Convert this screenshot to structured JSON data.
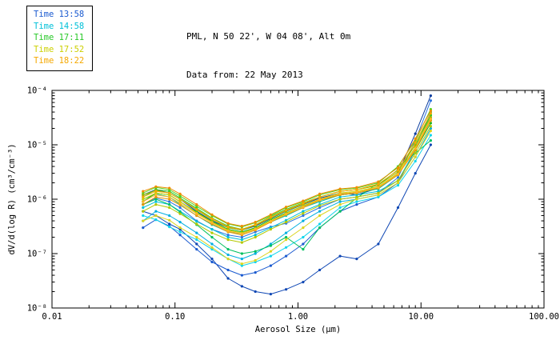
{
  "header": {
    "line1": "PML, N 50 22', W 04 08', Alt 0m",
    "line2": "Data from: 22 May 2013"
  },
  "legend": {
    "items": [
      {
        "label": "Time 13:58",
        "color": "#1a5ad0"
      },
      {
        "label": "Time 14:58",
        "color": "#00c0d8"
      },
      {
        "label": "Time 17:11",
        "color": "#28c828"
      },
      {
        "label": "Time 17:52",
        "color": "#ccd000"
      },
      {
        "label": "Time 18:22",
        "color": "#f5a800"
      }
    ]
  },
  "chart_data": {
    "type": "line",
    "title": "PML, N 50 22', W 04 08', Alt 0m — Data from: 22 May 2013",
    "xlabel": "Aerosol Size (μm)",
    "ylabel": "dV/d(log R) (cm³/cm⁻³)",
    "xscale": "log",
    "yscale": "log",
    "xlim": [
      0.01,
      100
    ],
    "ylim": [
      1e-08,
      0.0001
    ],
    "x_tick_labels": [
      "0.01",
      "0.10",
      "1.00",
      "10.00",
      "100.00"
    ],
    "x_tick_values": [
      0.01,
      0.1,
      1,
      10,
      100
    ],
    "y_tick_labels": [
      "10⁻⁸",
      "10⁻⁷",
      "10⁻⁶",
      "10⁻⁵",
      "10⁻⁴"
    ],
    "y_tick_values": [
      1e-08,
      1e-07,
      1e-06,
      1e-05,
      0.0001
    ],
    "grid": false,
    "legend_position": "top-left",
    "x": [
      0.055,
      0.07,
      0.09,
      0.11,
      0.15,
      0.2,
      0.27,
      0.35,
      0.45,
      0.6,
      0.8,
      1.1,
      1.5,
      2.2,
      3.0,
      4.5,
      6.5,
      9.0,
      12.0
    ],
    "series": [
      {
        "name": "Time 13:58 a",
        "group": "13:58",
        "color": "#0f47b4",
        "values": [
          6e-07,
          5e-07,
          3.5e-07,
          2.8e-07,
          1.5e-07,
          8e-08,
          3.5e-08,
          2.5e-08,
          2e-08,
          1.8e-08,
          2.2e-08,
          3e-08,
          5e-08,
          9e-08,
          8e-08,
          1.5e-07,
          7e-07,
          3e-06,
          1e-05
        ]
      },
      {
        "name": "Time 13:58 b",
        "group": "13:58",
        "color": "#1a5ad0",
        "values": [
          3e-07,
          4.2e-07,
          3.2e-07,
          2.2e-07,
          1.2e-07,
          7e-08,
          5e-08,
          4e-08,
          4.5e-08,
          6e-08,
          9e-08,
          1.5e-07,
          3e-07,
          6e-07,
          8e-07,
          1.1e-06,
          2e-06,
          8e-06,
          3e-05
        ]
      },
      {
        "name": "Time 13:58 c",
        "group": "13:58",
        "color": "#2a72e0",
        "values": [
          8e-07,
          1.05e-06,
          9e-07,
          7e-07,
          4e-07,
          2.8e-07,
          2.2e-07,
          2e-07,
          2.5e-07,
          3.1e-07,
          3.6e-07,
          5e-07,
          7e-07,
          1e-06,
          1.1e-06,
          1.3e-06,
          2.5e-06,
          1.2e-05,
          6.5e-05
        ]
      },
      {
        "name": "Time 13:58 d",
        "group": "13:58",
        "color": "#0b3c9e",
        "values": [
          1.2e-06,
          1.5e-06,
          1.3e-06,
          1e-06,
          6e-07,
          4e-07,
          3e-07,
          2.7e-07,
          3.2e-07,
          4.4e-07,
          6e-07,
          8e-07,
          1.05e-06,
          1.3e-06,
          1.2e-06,
          1.6e-06,
          3e-06,
          1.6e-05,
          8e-05
        ]
      },
      {
        "name": "Time 14:58 a",
        "group": "14:58",
        "color": "#00aee0",
        "values": [
          4e-07,
          6e-07,
          5e-07,
          3.8e-07,
          2.4e-07,
          1.5e-07,
          9.5e-08,
          8e-08,
          1e-07,
          1.5e-07,
          2.4e-07,
          4e-07,
          6e-07,
          9e-07,
          1e-06,
          1.2e-06,
          2e-06,
          6e-06,
          2e-05
        ]
      },
      {
        "name": "Time 14:58 b",
        "group": "14:58",
        "color": "#00c0d8",
        "values": [
          7e-07,
          9e-07,
          8e-07,
          6e-07,
          3.9e-07,
          2.8e-07,
          2e-07,
          1.8e-07,
          2.2e-07,
          3e-07,
          4.1e-07,
          6e-07,
          8e-07,
          1.1e-06,
          1.2e-06,
          1.4e-06,
          2.2e-06,
          8e-06,
          3e-05
        ]
      },
      {
        "name": "Time 14:58 c",
        "group": "14:58",
        "color": "#00c8b0",
        "values": [
          1e-06,
          1.25e-06,
          1.1e-06,
          8e-07,
          5e-07,
          3.4e-07,
          2.5e-07,
          2.3e-07,
          2.8e-07,
          3.8e-07,
          5e-07,
          7e-07,
          9e-07,
          1.2e-06,
          1.3e-06,
          1.55e-06,
          2.8e-06,
          9e-06,
          4e-05
        ]
      },
      {
        "name": "Time 14:58 d",
        "group": "14:58",
        "color": "#10d4ec",
        "values": [
          5e-07,
          4.2e-07,
          3.1e-07,
          2.5e-07,
          1.8e-07,
          1.2e-07,
          8e-08,
          6e-08,
          7e-08,
          9e-08,
          1.3e-07,
          2e-07,
          3.5e-07,
          7e-07,
          9e-07,
          1.1e-06,
          1.8e-06,
          5e-06,
          1.5e-05
        ]
      },
      {
        "name": "Time 17:11 a",
        "group": "17:11",
        "color": "#18b418",
        "values": [
          9e-07,
          1.3e-06,
          1.2e-06,
          9e-07,
          5.8e-07,
          3.9e-07,
          2.8e-07,
          2.5e-07,
          3e-07,
          4.2e-07,
          5.6e-07,
          7.5e-07,
          9.6e-07,
          1.2e-06,
          1.3e-06,
          1.6e-06,
          3e-06,
          8e-06,
          2.5e-05
        ]
      },
      {
        "name": "Time 17:11 b",
        "group": "17:11",
        "color": "#28c828",
        "values": [
          1.1e-06,
          1.5e-06,
          1.4e-06,
          1.05e-06,
          6.8e-07,
          4.5e-07,
          3.2e-07,
          2.8e-07,
          3.4e-07,
          4.8e-07,
          6.5e-07,
          8.6e-07,
          1.1e-06,
          1.4e-06,
          1.5e-06,
          1.8e-06,
          3.5e-06,
          1e-05,
          3.5e-05
        ]
      },
      {
        "name": "Time 17:11 c",
        "group": "17:11",
        "color": "#00c060",
        "values": [
          8e-07,
          1e-06,
          8e-07,
          5.8e-07,
          3.4e-07,
          2e-07,
          1.2e-07,
          1e-07,
          1.1e-07,
          1.4e-07,
          2e-07,
          1.2e-07,
          3e-07,
          6e-07,
          1.05e-06,
          2e-06,
          4e-06,
          7e-06,
          1.2e-05
        ]
      },
      {
        "name": "Time 17:11 d",
        "group": "17:11",
        "color": "#52d41e",
        "values": [
          1.3e-06,
          1.65e-06,
          1.5e-06,
          1.15e-06,
          7.4e-07,
          5e-07,
          3.5e-07,
          3.1e-07,
          3.7e-07,
          5e-07,
          7e-07,
          9e-07,
          1.2e-06,
          1.5e-06,
          1.6e-06,
          2e-06,
          4e-06,
          1.2e-05,
          4.5e-05
        ]
      },
      {
        "name": "Time 17:52 a",
        "group": "17:52",
        "color": "#b4c800",
        "values": [
          6e-07,
          8e-07,
          7e-07,
          5.4e-07,
          3.5e-07,
          2.4e-07,
          1.8e-07,
          1.6e-07,
          2e-07,
          2.8e-07,
          3.8e-07,
          5.5e-07,
          7.6e-07,
          1e-06,
          1.1e-06,
          1.3e-06,
          2.2e-06,
          7e-06,
          2.2e-05
        ]
      },
      {
        "name": "Time 17:52 b",
        "group": "17:52",
        "color": "#ccd000",
        "values": [
          1e-06,
          1.3e-06,
          1.2e-06,
          9e-07,
          5.6e-07,
          3.8e-07,
          2.7e-07,
          2.4e-07,
          2.9e-07,
          4e-07,
          5.5e-07,
          7.6e-07,
          1e-06,
          1.3e-06,
          1.4e-06,
          1.7e-06,
          3e-06,
          9e-06,
          3e-05
        ]
      },
      {
        "name": "Time 17:52 c",
        "group": "17:52",
        "color": "#dcd41e",
        "values": [
          4e-07,
          5e-07,
          4.1e-07,
          3e-07,
          2e-07,
          1.3e-07,
          8e-08,
          6.5e-08,
          7.5e-08,
          1.1e-07,
          1.8e-07,
          3e-07,
          5e-07,
          8e-07,
          1e-06,
          1.2e-06,
          2e-06,
          6e-06,
          1.8e-05
        ]
      },
      {
        "name": "Time 17:52 d",
        "group": "17:52",
        "color": "#a0b400",
        "values": [
          1.2e-06,
          1.45e-06,
          1.3e-06,
          1e-06,
          6.4e-07,
          4.2e-07,
          3e-07,
          2.7e-07,
          3.3e-07,
          4.5e-07,
          6.1e-07,
          8.1e-07,
          1.1e-06,
          1.4e-06,
          1.5e-06,
          1.8e-06,
          3.2e-06,
          1e-05,
          3.2e-05
        ]
      },
      {
        "name": "Time 18:22 a",
        "group": "18:22",
        "color": "#e89600",
        "values": [
          8e-07,
          1.1e-06,
          1e-06,
          7.8e-07,
          5e-07,
          3.5e-07,
          2.5e-07,
          2.2e-07,
          2.7e-07,
          3.8e-07,
          5.2e-07,
          7e-07,
          9.5e-07,
          1.2e-06,
          1.3e-06,
          1.6e-06,
          2.8e-06,
          8e-06,
          2.8e-05
        ]
      },
      {
        "name": "Time 18:22 b",
        "group": "18:22",
        "color": "#f5a800",
        "values": [
          1.1e-06,
          1.4e-06,
          1.3e-06,
          1e-06,
          6.5e-07,
          4.4e-07,
          3.1e-07,
          2.8e-07,
          3.4e-07,
          4.7e-07,
          6.3e-07,
          8.4e-07,
          1.1e-06,
          1.4e-06,
          1.5e-06,
          1.9e-06,
          3.4e-06,
          1.1e-05,
          3.8e-05
        ]
      },
      {
        "name": "Time 18:22 c",
        "group": "18:22",
        "color": "#ffb428",
        "values": [
          9e-07,
          1.2e-06,
          1.1e-06,
          8.4e-07,
          5.4e-07,
          3.7e-07,
          2.6e-07,
          2.3e-07,
          2.8e-07,
          3.9e-07,
          5.3e-07,
          7.2e-07,
          9.8e-07,
          1.25e-06,
          1.35e-06,
          1.65e-06,
          2.9e-06,
          8.5e-06,
          3e-05
        ]
      },
      {
        "name": "Time 18:22 d",
        "group": "18:22",
        "color": "#f08c00",
        "values": [
          1.4e-06,
          1.7e-06,
          1.6e-06,
          1.25e-06,
          8e-07,
          5.2e-07,
          3.6e-07,
          3.2e-07,
          3.8e-07,
          5.2e-07,
          7.2e-07,
          9.3e-07,
          1.25e-06,
          1.55e-06,
          1.65e-06,
          2.1e-06,
          3.8e-06,
          1.3e-05,
          4.2e-05
        ]
      }
    ]
  }
}
